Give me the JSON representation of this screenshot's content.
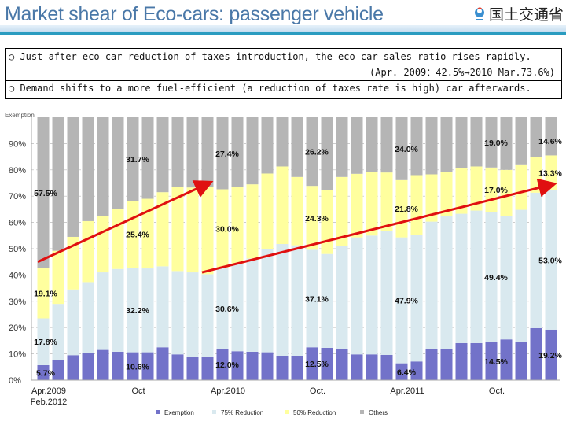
{
  "header": {
    "title": "Market shear of Eco-cars: passenger vehicle",
    "logo_text": "国土交通省"
  },
  "notes": {
    "line1": "○ Just after eco-car reduction of taxes introduction, the eco-car sales ratio rises rapidly.",
    "line2": "(Apr. 2009：42.5%→2010 Mar.73.6%)",
    "line3": "○ Demand shifts to a more fuel-efficient (a reduction of taxes rate is high) car afterwards."
  },
  "chart_data": {
    "type": "bar",
    "stacked": true,
    "corner_label": "Exemption",
    "ylim": [
      0,
      100
    ],
    "yticks": [
      "0%",
      "10%",
      "20%",
      "30%",
      "40%",
      "50%",
      "60%",
      "70%",
      "80%",
      "90%"
    ],
    "grid": true,
    "legend_placement": "bottom",
    "months_count_from": "Apr.2009",
    "months_count_to": "Feb.2012",
    "xtick_labels": [
      {
        "bar": 0,
        "text": "Apr.2009",
        "text2": "Feb.2012"
      },
      {
        "bar": 6,
        "text": "Oct"
      },
      {
        "bar": 12,
        "text": "Apr.2010"
      },
      {
        "bar": 18,
        "text": "Oct."
      },
      {
        "bar": 24,
        "text": "Apr.2011"
      },
      {
        "bar": 30,
        "text": "Oct."
      }
    ],
    "series": [
      {
        "name": "Exemption",
        "color": "#7272c9",
        "values": [
          5.7,
          7.5,
          9.5,
          10.3,
          11.5,
          10.8,
          10.6,
          10.6,
          12.5,
          9.8,
          9.0,
          9.0,
          12.0,
          11.0,
          10.8,
          10.6,
          9.3,
          9.3,
          12.5,
          12.3,
          12.0,
          9.8,
          9.8,
          9.6,
          6.4,
          7.1,
          12.0,
          11.8,
          14.1,
          14.1,
          14.5,
          15.5,
          14.6,
          19.8,
          19.2
        ]
      },
      {
        "name": "75% Reduction",
        "color": "#d9e9ef",
        "values": [
          17.8,
          21.5,
          25.0,
          27.0,
          29.5,
          31.5,
          32.2,
          31.9,
          30.8,
          31.7,
          32.0,
          31.3,
          30.6,
          33.3,
          35.5,
          39.2,
          42.5,
          42.0,
          37.1,
          35.7,
          39.0,
          44.5,
          45.2,
          47.2,
          47.9,
          48.2,
          48.3,
          50.5,
          49.2,
          50.4,
          49.4,
          46.8,
          50.2,
          51.5,
          53.0
        ]
      },
      {
        "name": "50% Reduction",
        "color": "#ffff9e",
        "values": [
          19.1,
          20.2,
          20.0,
          23.2,
          21.3,
          22.7,
          25.4,
          26.5,
          28.2,
          32.1,
          32.3,
          33.3,
          30.0,
          29.3,
          28.2,
          28.8,
          29.5,
          26.0,
          24.3,
          24.3,
          26.3,
          24.2,
          24.3,
          22.2,
          21.8,
          22.7,
          18.0,
          17.0,
          17.3,
          16.8,
          17.0,
          17.7,
          17.0,
          13.5,
          13.3
        ]
      },
      {
        "name": "Others",
        "color": "#b5b5b5",
        "values": [
          57.4,
          50.8,
          45.5,
          39.5,
          37.7,
          35.0,
          31.8,
          31.0,
          28.5,
          26.4,
          26.7,
          26.4,
          27.4,
          26.4,
          25.5,
          21.4,
          18.7,
          22.7,
          26.1,
          27.7,
          22.7,
          21.5,
          20.7,
          21.0,
          23.9,
          22.0,
          21.7,
          20.7,
          19.4,
          18.7,
          19.1,
          20.0,
          18.2,
          15.2,
          14.5
        ]
      }
    ],
    "data_labels": [
      {
        "bar": 0,
        "series": 0,
        "text": "5.7%"
      },
      {
        "bar": 0,
        "series": 1,
        "text": "17.8%"
      },
      {
        "bar": 0,
        "series": 2,
        "text": "19.1%"
      },
      {
        "bar": 0,
        "series": 3,
        "text": "57.5%"
      },
      {
        "bar": 6,
        "series": 0,
        "text": "10.6%"
      },
      {
        "bar": 6,
        "series": 1,
        "text": "32.2%"
      },
      {
        "bar": 6,
        "series": 2,
        "text": "25.4%"
      },
      {
        "bar": 6,
        "series": 3,
        "text": "31.7%"
      },
      {
        "bar": 12,
        "series": 0,
        "text": "12.0%"
      },
      {
        "bar": 12,
        "series": 1,
        "text": "30.6%"
      },
      {
        "bar": 12,
        "series": 2,
        "text": "30.0%"
      },
      {
        "bar": 12,
        "series": 3,
        "text": "27.4%"
      },
      {
        "bar": 18,
        "series": 0,
        "text": "12.5%"
      },
      {
        "bar": 18,
        "series": 1,
        "text": "37.1%"
      },
      {
        "bar": 18,
        "series": 2,
        "text": "24.3%"
      },
      {
        "bar": 18,
        "series": 3,
        "text": "26.2%"
      },
      {
        "bar": 24,
        "series": 0,
        "text": "6.4%"
      },
      {
        "bar": 24,
        "series": 1,
        "text": "47.9%"
      },
      {
        "bar": 24,
        "series": 2,
        "text": "21.8%"
      },
      {
        "bar": 24,
        "series": 3,
        "text": "24.0%"
      },
      {
        "bar": 30,
        "series": 0,
        "text": "14.5%"
      },
      {
        "bar": 30,
        "series": 1,
        "text": "49.4%"
      },
      {
        "bar": 30,
        "series": 2,
        "text": "17.0%"
      },
      {
        "bar": 30,
        "series": 3,
        "text": "19.0%"
      },
      {
        "bar": 34,
        "series": 0,
        "text": "19.2%"
      },
      {
        "bar": 34,
        "series": 1,
        "text": "53.0%"
      },
      {
        "bar": 34,
        "series": 2,
        "text": "13.3%"
      },
      {
        "bar": 34,
        "series": 3,
        "text": "14.6%"
      }
    ],
    "arrows": [
      {
        "from_bar": 0,
        "from_y": 45,
        "to_bar": 11,
        "to_y": 75,
        "color": "#e01010"
      },
      {
        "from_bar": 11,
        "from_y": 41,
        "to_bar": 34,
        "to_y": 74.5,
        "color": "#e01010"
      }
    ]
  }
}
